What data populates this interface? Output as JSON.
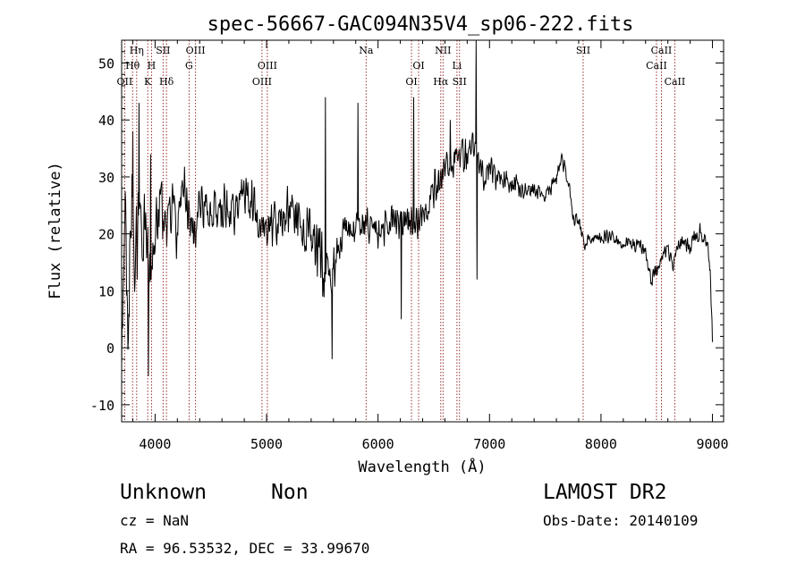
{
  "chart_data": {
    "type": "line",
    "title": "spec-56667-GAC094N35V4_sp06-222.fits",
    "xlabel": "Wavelength (Å)",
    "ylabel": "Flux (relative)",
    "xlim": [
      3700,
      9100
    ],
    "ylim": [
      -13,
      54
    ],
    "xticks": [
      4000,
      5000,
      6000,
      7000,
      8000,
      9000
    ],
    "yticks": [
      -10,
      0,
      10,
      20,
      30,
      40,
      50
    ],
    "grid": false,
    "line_color": "#000000",
    "marker_color": "#8b1a1a",
    "spectrum_anchors": [
      [
        3700,
        2
      ],
      [
        3730,
        22
      ],
      [
        3760,
        8
      ],
      [
        3790,
        28
      ],
      [
        3820,
        14
      ],
      [
        3850,
        22
      ],
      [
        3880,
        18
      ],
      [
        3910,
        24
      ],
      [
        3950,
        12
      ],
      [
        4000,
        22
      ],
      [
        4050,
        26
      ],
      [
        4100,
        18
      ],
      [
        4150,
        24
      ],
      [
        4200,
        20
      ],
      [
        4250,
        30
      ],
      [
        4300,
        25
      ],
      [
        4350,
        19
      ],
      [
        4400,
        26
      ],
      [
        4500,
        24
      ],
      [
        4600,
        25
      ],
      [
        4700,
        24
      ],
      [
        4800,
        28
      ],
      [
        4900,
        24
      ],
      [
        5000,
        21
      ],
      [
        5100,
        22
      ],
      [
        5200,
        24
      ],
      [
        5300,
        22
      ],
      [
        5400,
        19
      ],
      [
        5500,
        15
      ],
      [
        5550,
        11
      ],
      [
        5600,
        13
      ],
      [
        5650,
        17
      ],
      [
        5700,
        20
      ],
      [
        5800,
        21
      ],
      [
        5900,
        22
      ],
      [
        6000,
        20
      ],
      [
        6100,
        22
      ],
      [
        6200,
        22
      ],
      [
        6300,
        21
      ],
      [
        6400,
        23
      ],
      [
        6450,
        26
      ],
      [
        6500,
        27
      ],
      [
        6550,
        30
      ],
      [
        6600,
        32
      ],
      [
        6650,
        31
      ],
      [
        6700,
        34
      ],
      [
        6750,
        35
      ],
      [
        6800,
        33
      ],
      [
        6850,
        36
      ],
      [
        6900,
        33
      ],
      [
        6950,
        30
      ],
      [
        7000,
        32
      ],
      [
        7050,
        30
      ],
      [
        7100,
        31
      ],
      [
        7200,
        29
      ],
      [
        7300,
        28
      ],
      [
        7400,
        28
      ],
      [
        7500,
        27
      ],
      [
        7550,
        28
      ],
      [
        7600,
        30
      ],
      [
        7650,
        33
      ],
      [
        7700,
        30
      ],
      [
        7750,
        23
      ],
      [
        7800,
        22
      ],
      [
        7850,
        18
      ],
      [
        7900,
        19
      ],
      [
        8000,
        19
      ],
      [
        8100,
        20
      ],
      [
        8200,
        18
      ],
      [
        8300,
        18
      ],
      [
        8400,
        17
      ],
      [
        8450,
        12
      ],
      [
        8500,
        14
      ],
      [
        8550,
        16
      ],
      [
        8600,
        17
      ],
      [
        8650,
        15
      ],
      [
        8700,
        18
      ],
      [
        8750,
        18
      ],
      [
        8800,
        17
      ],
      [
        8850,
        20
      ],
      [
        8900,
        20
      ],
      [
        8950,
        18
      ],
      [
        8980,
        14
      ],
      [
        9000,
        2
      ]
    ],
    "spectrum_noise": [
      [
        3700,
        14
      ],
      [
        3900,
        9
      ],
      [
        4000,
        6
      ],
      [
        4500,
        5
      ],
      [
        5000,
        4.5
      ],
      [
        5500,
        6
      ],
      [
        5700,
        3.5
      ],
      [
        6500,
        4
      ],
      [
        7000,
        3
      ],
      [
        7500,
        1.6
      ],
      [
        8000,
        1.4
      ],
      [
        8500,
        1.8
      ],
      [
        9000,
        2
      ]
    ],
    "spectrum_spikes": [
      [
        3800,
        38
      ],
      [
        3855,
        43
      ],
      [
        3940,
        -5
      ],
      [
        3960,
        34
      ],
      [
        5530,
        44
      ],
      [
        5590,
        -2
      ],
      [
        5820,
        43
      ],
      [
        6210,
        5
      ],
      [
        6320,
        44
      ],
      [
        6650,
        40
      ],
      [
        6880,
        55
      ],
      [
        6890,
        12
      ],
      [
        9000,
        1
      ]
    ],
    "lines": [
      {
        "label": "Hη",
        "wavelength": 3835,
        "row": 0
      },
      {
        "label": "Hθ",
        "wavelength": 3798,
        "row": 1
      },
      {
        "label": "OII",
        "wavelength": 3727,
        "row": 2
      },
      {
        "label": "H",
        "wavelength": 3968,
        "row": 1
      },
      {
        "label": "K",
        "wavelength": 3934,
        "row": 2
      },
      {
        "label": "SII",
        "wavelength": 4072,
        "row": 0
      },
      {
        "label": "Hδ",
        "wavelength": 4102,
        "row": 2
      },
      {
        "label": "OIII",
        "wavelength": 4363,
        "row": 0
      },
      {
        "label": "G",
        "wavelength": 4305,
        "row": 1
      },
      {
        "label": "OIII",
        "wavelength": 5007,
        "row": 1
      },
      {
        "label": "OIII",
        "wavelength": 4959,
        "row": 2
      },
      {
        "label": "Na",
        "wavelength": 5893,
        "row": 0
      },
      {
        "label": "OI",
        "wavelength": 6364,
        "row": 1
      },
      {
        "label": "OI",
        "wavelength": 6300,
        "row": 2
      },
      {
        "label": "NII",
        "wavelength": 6583,
        "row": 0
      },
      {
        "label": "Hα",
        "wavelength": 6563,
        "row": 2
      },
      {
        "label": "Li",
        "wavelength": 6708,
        "row": 1
      },
      {
        "label": "SII",
        "wavelength": 6731,
        "row": 2
      },
      {
        "label": "SII",
        "wavelength": 7840,
        "row": 0
      },
      {
        "label": "CaII",
        "wavelength": 8542,
        "row": 0
      },
      {
        "label": "CaII",
        "wavelength": 8498,
        "row": 1
      },
      {
        "label": "CaII",
        "wavelength": 8662,
        "row": 2
      }
    ]
  },
  "info": {
    "class": "Unknown",
    "subclass": "Non",
    "survey": "LAMOST DR2",
    "cz": "cz = NaN",
    "obs_date": "Obs-Date: 20140109",
    "radec": "RA =  96.53532, DEC =  33.99670"
  }
}
